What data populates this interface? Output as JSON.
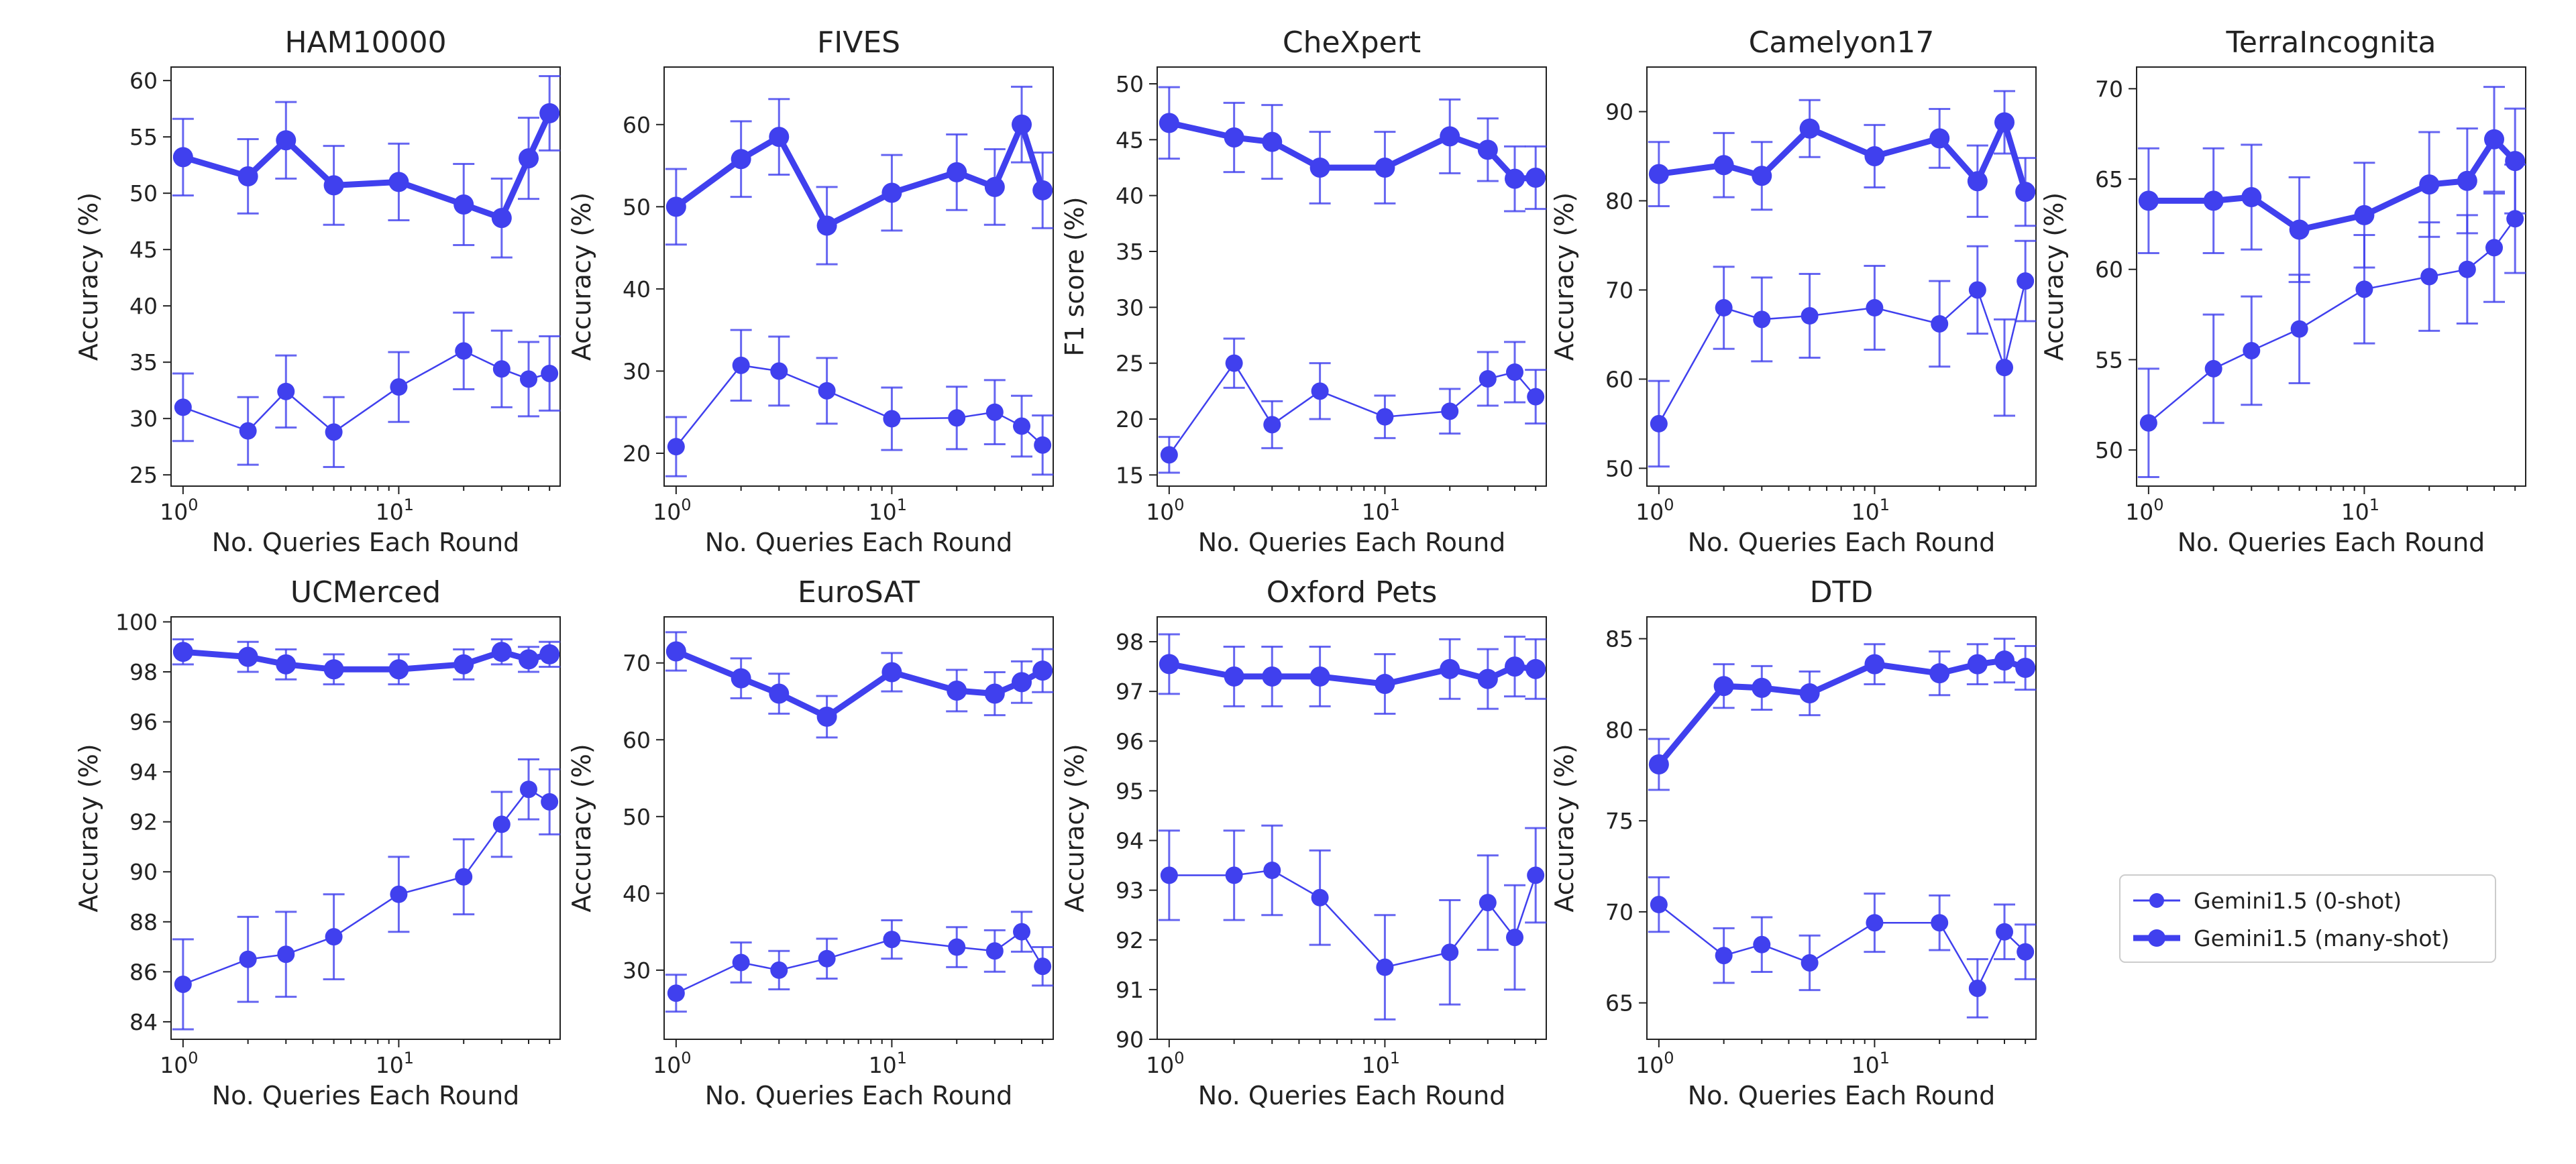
{
  "figure": {
    "series_color": "#4040ee",
    "x_tick_values": [
      1,
      10
    ],
    "x_tick_bases": [
      "10",
      "10"
    ],
    "x_tick_exponents": [
      "0",
      "1"
    ]
  },
  "legend": {
    "entries": [
      {
        "key": "zero_shot",
        "label": "Gemini1.5 (0-shot)"
      },
      {
        "key": "many_shot",
        "label": "Gemini1.5 (many-shot)"
      }
    ],
    "placement": "right, lower half"
  },
  "chart_data": [
    {
      "type": "line",
      "title": "HAM10000",
      "xlabel": "No. Queries Each Round",
      "ylabel": "Accuracy (%)",
      "x_scale": "log",
      "xlim": [
        0.88,
        56
      ],
      "ylim": [
        24,
        61.2
      ],
      "yticks": [
        25,
        30,
        35,
        40,
        45,
        50,
        55,
        60
      ],
      "x": [
        1,
        2,
        3,
        5,
        10,
        20,
        30,
        40,
        50
      ],
      "series": [
        {
          "name": "Gemini1.5 (0-shot)",
          "values": [
            31.0,
            28.9,
            32.4,
            28.8,
            32.8,
            36.0,
            34.4,
            33.5,
            34.0
          ],
          "errors": [
            3.0,
            3.0,
            3.2,
            3.1,
            3.1,
            3.4,
            3.4,
            3.3,
            3.3
          ]
        },
        {
          "name": "Gemini1.5 (many-shot)",
          "values": [
            53.2,
            51.5,
            54.7,
            50.7,
            51.0,
            49.0,
            47.8,
            53.1,
            57.1
          ],
          "errors": [
            3.4,
            3.3,
            3.4,
            3.5,
            3.4,
            3.6,
            3.5,
            3.6,
            3.3
          ]
        }
      ]
    },
    {
      "type": "line",
      "title": "FIVES",
      "xlabel": "No. Queries Each Round",
      "ylabel": "Accuracy (%)",
      "x_scale": "log",
      "xlim": [
        0.88,
        56
      ],
      "ylim": [
        16,
        67
      ],
      "yticks": [
        20,
        30,
        40,
        50,
        60
      ],
      "x": [
        1,
        2,
        3,
        5,
        10,
        20,
        30,
        40,
        50
      ],
      "series": [
        {
          "name": "Gemini1.5 (0-shot)",
          "values": [
            20.8,
            30.7,
            30.0,
            27.6,
            24.2,
            24.3,
            25.0,
            23.3,
            21.0
          ],
          "errors": [
            3.6,
            4.3,
            4.2,
            4.0,
            3.8,
            3.8,
            3.9,
            3.7,
            3.6
          ]
        },
        {
          "name": "Gemini1.5 (many-shot)",
          "values": [
            50.0,
            55.8,
            58.5,
            47.7,
            51.7,
            54.2,
            52.4,
            60.0,
            52.0
          ],
          "errors": [
            4.6,
            4.6,
            4.6,
            4.7,
            4.6,
            4.6,
            4.6,
            4.6,
            4.6
          ]
        }
      ]
    },
    {
      "type": "line",
      "title": "CheXpert",
      "xlabel": "No. Queries Each Round",
      "ylabel": "F1 score (%)",
      "x_scale": "log",
      "xlim": [
        0.88,
        56
      ],
      "ylim": [
        14,
        51.5
      ],
      "yticks": [
        15,
        20,
        25,
        30,
        35,
        40,
        45,
        50
      ],
      "x": [
        1,
        2,
        3,
        5,
        10,
        20,
        30,
        40,
        50
      ],
      "series": [
        {
          "name": "Gemini1.5 (0-shot)",
          "values": [
            16.8,
            25.0,
            19.5,
            22.5,
            20.2,
            20.7,
            23.6,
            24.2,
            22.0
          ],
          "errors": [
            1.6,
            2.2,
            2.1,
            2.5,
            1.9,
            2.0,
            2.4,
            2.7,
            2.4
          ]
        },
        {
          "name": "Gemini1.5 (many-shot)",
          "values": [
            46.5,
            45.2,
            44.8,
            42.5,
            42.5,
            45.3,
            44.1,
            41.5,
            41.6
          ],
          "errors": [
            3.2,
            3.1,
            3.3,
            3.2,
            3.2,
            3.3,
            2.8,
            2.9,
            2.8
          ]
        }
      ]
    },
    {
      "type": "line",
      "title": "Camelyon17",
      "xlabel": "No. Queries Each Round",
      "ylabel": "Accuracy (%)",
      "x_scale": "log",
      "xlim": [
        0.88,
        56
      ],
      "ylim": [
        48,
        95
      ],
      "yticks": [
        50,
        60,
        70,
        80,
        90
      ],
      "x": [
        1,
        2,
        3,
        5,
        10,
        20,
        30,
        40,
        50
      ],
      "series": [
        {
          "name": "Gemini1.5 (0-shot)",
          "values": [
            55.0,
            68.0,
            66.7,
            67.1,
            68.0,
            66.2,
            70.0,
            61.3,
            71.0
          ],
          "errors": [
            4.8,
            4.6,
            4.7,
            4.7,
            4.7,
            4.8,
            4.9,
            5.4,
            4.5
          ]
        },
        {
          "name": "Gemini1.5 (many-shot)",
          "values": [
            83.0,
            84.0,
            82.8,
            88.1,
            85.0,
            87.0,
            82.2,
            88.8,
            81.0
          ],
          "errors": [
            3.6,
            3.6,
            3.8,
            3.2,
            3.5,
            3.3,
            4.0,
            3.5,
            3.8
          ]
        }
      ]
    },
    {
      "type": "line",
      "title": "TerraIncognita",
      "xlabel": "No. Queries Each Round",
      "ylabel": "Accuracy (%)",
      "x_scale": "log",
      "xlim": [
        0.88,
        56
      ],
      "ylim": [
        48,
        71.2
      ],
      "yticks": [
        50,
        55,
        60,
        65,
        70
      ],
      "x": [
        1,
        2,
        3,
        5,
        10,
        20,
        30,
        40,
        50
      ],
      "series": [
        {
          "name": "Gemini1.5 (0-shot)",
          "values": [
            51.5,
            54.5,
            55.5,
            56.7,
            58.9,
            59.6,
            60.0,
            61.2,
            62.8
          ],
          "errors": [
            3.0,
            3.0,
            3.0,
            3.0,
            3.0,
            3.0,
            3.0,
            3.0,
            3.0
          ]
        },
        {
          "name": "Gemini1.5 (many-shot)",
          "values": [
            63.8,
            63.8,
            64.0,
            62.2,
            63.0,
            64.7,
            64.9,
            67.2,
            66.0
          ],
          "errors": [
            2.9,
            2.9,
            2.9,
            2.9,
            2.9,
            2.9,
            2.9,
            2.9,
            2.9
          ]
        }
      ]
    },
    {
      "type": "line",
      "title": "UCMerced",
      "xlabel": "No. Queries Each Round",
      "ylabel": "Accuracy (%)",
      "x_scale": "log",
      "xlim": [
        0.88,
        56
      ],
      "ylim": [
        83.3,
        100.2
      ],
      "yticks": [
        84,
        86,
        88,
        90,
        92,
        94,
        96,
        98,
        100
      ],
      "x": [
        1,
        2,
        3,
        5,
        10,
        20,
        30,
        40,
        50
      ],
      "series": [
        {
          "name": "Gemini1.5 (0-shot)",
          "values": [
            85.5,
            86.5,
            86.7,
            87.4,
            89.1,
            89.8,
            91.9,
            93.3,
            92.8
          ],
          "errors": [
            1.8,
            1.7,
            1.7,
            1.7,
            1.5,
            1.5,
            1.3,
            1.2,
            1.3
          ]
        },
        {
          "name": "Gemini1.5 (many-shot)",
          "values": [
            98.8,
            98.6,
            98.3,
            98.1,
            98.1,
            98.3,
            98.8,
            98.5,
            98.7
          ],
          "errors": [
            0.5,
            0.6,
            0.6,
            0.6,
            0.6,
            0.6,
            0.5,
            0.5,
            0.5
          ]
        }
      ]
    },
    {
      "type": "line",
      "title": "EuroSAT",
      "xlabel": "No. Queries Each Round",
      "ylabel": "Accuracy (%)",
      "x_scale": "log",
      "xlim": [
        0.88,
        56
      ],
      "ylim": [
        21,
        76
      ],
      "yticks": [
        30,
        40,
        50,
        60,
        70
      ],
      "x": [
        1,
        2,
        3,
        5,
        10,
        20,
        30,
        40,
        50
      ],
      "series": [
        {
          "name": "Gemini1.5 (0-shot)",
          "values": [
            27.0,
            31.0,
            30.0,
            31.5,
            34.0,
            33.0,
            32.5,
            35.0,
            30.5
          ],
          "errors": [
            2.4,
            2.6,
            2.5,
            2.6,
            2.5,
            2.6,
            2.7,
            2.6,
            2.5
          ]
        },
        {
          "name": "Gemini1.5 (many-shot)",
          "values": [
            71.5,
            68.0,
            66.0,
            63.0,
            68.8,
            66.4,
            66.0,
            67.5,
            69.0
          ],
          "errors": [
            2.5,
            2.6,
            2.6,
            2.7,
            2.5,
            2.7,
            2.8,
            2.7,
            2.8
          ]
        }
      ]
    },
    {
      "type": "line",
      "title": "Oxford Pets",
      "xlabel": "No. Queries Each Round",
      "ylabel": "Accuracy (%)",
      "x_scale": "log",
      "xlim": [
        0.88,
        56
      ],
      "ylim": [
        90,
        98.5
      ],
      "yticks": [
        90,
        91,
        92,
        93,
        94,
        95,
        96,
        97,
        98
      ],
      "x": [
        1,
        2,
        3,
        5,
        10,
        20,
        30,
        40,
        50
      ],
      "series": [
        {
          "name": "Gemini1.5 (0-shot)",
          "values": [
            93.3,
            93.3,
            93.4,
            92.85,
            91.45,
            91.75,
            92.75,
            92.05,
            93.3
          ],
          "errors": [
            0.9,
            0.9,
            0.9,
            0.95,
            1.05,
            1.05,
            0.95,
            1.05,
            0.95
          ]
        },
        {
          "name": "Gemini1.5 (many-shot)",
          "values": [
            97.55,
            97.3,
            97.3,
            97.3,
            97.15,
            97.45,
            97.25,
            97.5,
            97.45
          ],
          "errors": [
            0.6,
            0.6,
            0.6,
            0.6,
            0.6,
            0.6,
            0.6,
            0.6,
            0.6
          ]
        }
      ]
    },
    {
      "type": "line",
      "title": "DTD",
      "xlabel": "No. Queries Each Round",
      "ylabel": "Accuracy (%)",
      "x_scale": "log",
      "xlim": [
        0.88,
        56
      ],
      "ylim": [
        63,
        86.2
      ],
      "yticks": [
        65,
        70,
        75,
        80,
        85
      ],
      "x": [
        1,
        2,
        3,
        5,
        10,
        20,
        30,
        40,
        50
      ],
      "series": [
        {
          "name": "Gemini1.5 (0-shot)",
          "values": [
            70.4,
            67.6,
            68.2,
            67.2,
            69.4,
            69.4,
            65.8,
            68.9,
            67.8
          ],
          "errors": [
            1.5,
            1.5,
            1.5,
            1.5,
            1.6,
            1.5,
            1.6,
            1.5,
            1.5
          ]
        },
        {
          "name": "Gemini1.5 (many-shot)",
          "values": [
            78.1,
            82.4,
            82.3,
            82.0,
            83.6,
            83.1,
            83.6,
            83.8,
            83.4
          ],
          "errors": [
            1.4,
            1.2,
            1.2,
            1.2,
            1.1,
            1.2,
            1.1,
            1.2,
            1.2
          ]
        }
      ]
    }
  ]
}
